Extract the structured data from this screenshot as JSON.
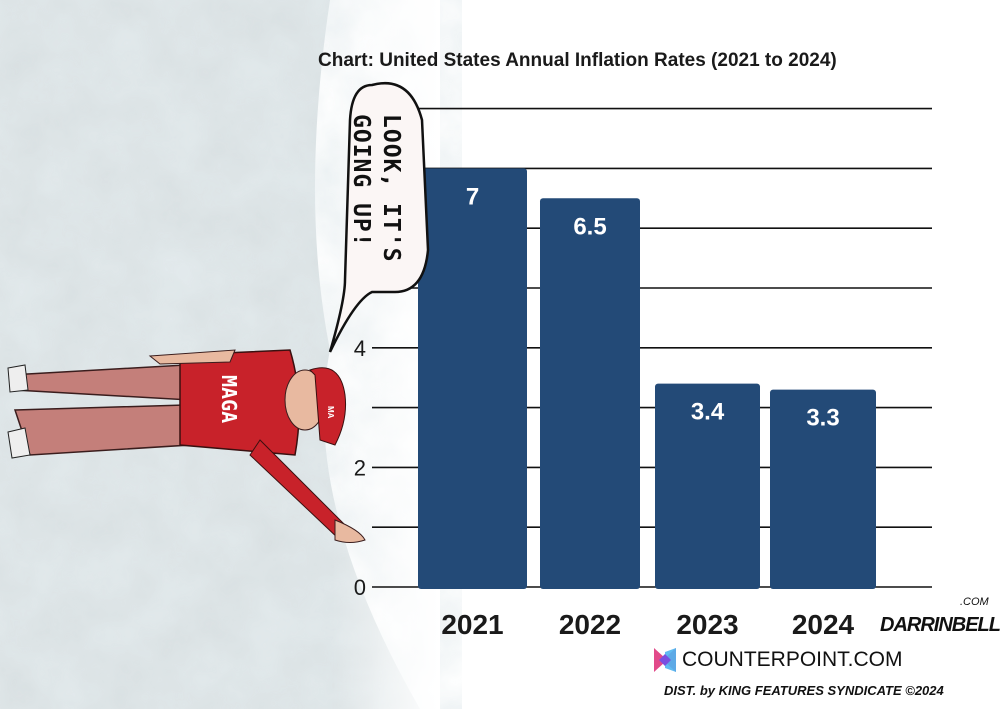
{
  "chart_data": {
    "type": "bar",
    "title": "Chart: United States Annual Inflation Rates (2021 to 2024)",
    "categories": [
      "2021",
      "2022",
      "2023",
      "2024"
    ],
    "values": [
      7,
      6.5,
      3.4,
      3.3
    ],
    "data_labels": [
      "7",
      "6.5",
      "3.4",
      "3.3"
    ],
    "xlabel": "",
    "ylabel": "",
    "ylim": [
      0,
      8
    ],
    "yticks_labeled": [
      "0",
      "2",
      "4"
    ],
    "gridline_step": 1,
    "grid": true,
    "bar_color": "#234a77"
  },
  "cartoon": {
    "speech_bubble": [
      "LOOK, IT'S",
      "GOING UP!"
    ],
    "shirt_text": "MAGA",
    "hat_text": "MA"
  },
  "credits": {
    "site": "COUNTERPOINT.COM",
    "distribution": "DIST. by KING FEATURES SYNDICATE ©2024",
    "signature": "DARRINBELL",
    "signature_suffix": ".COM"
  }
}
